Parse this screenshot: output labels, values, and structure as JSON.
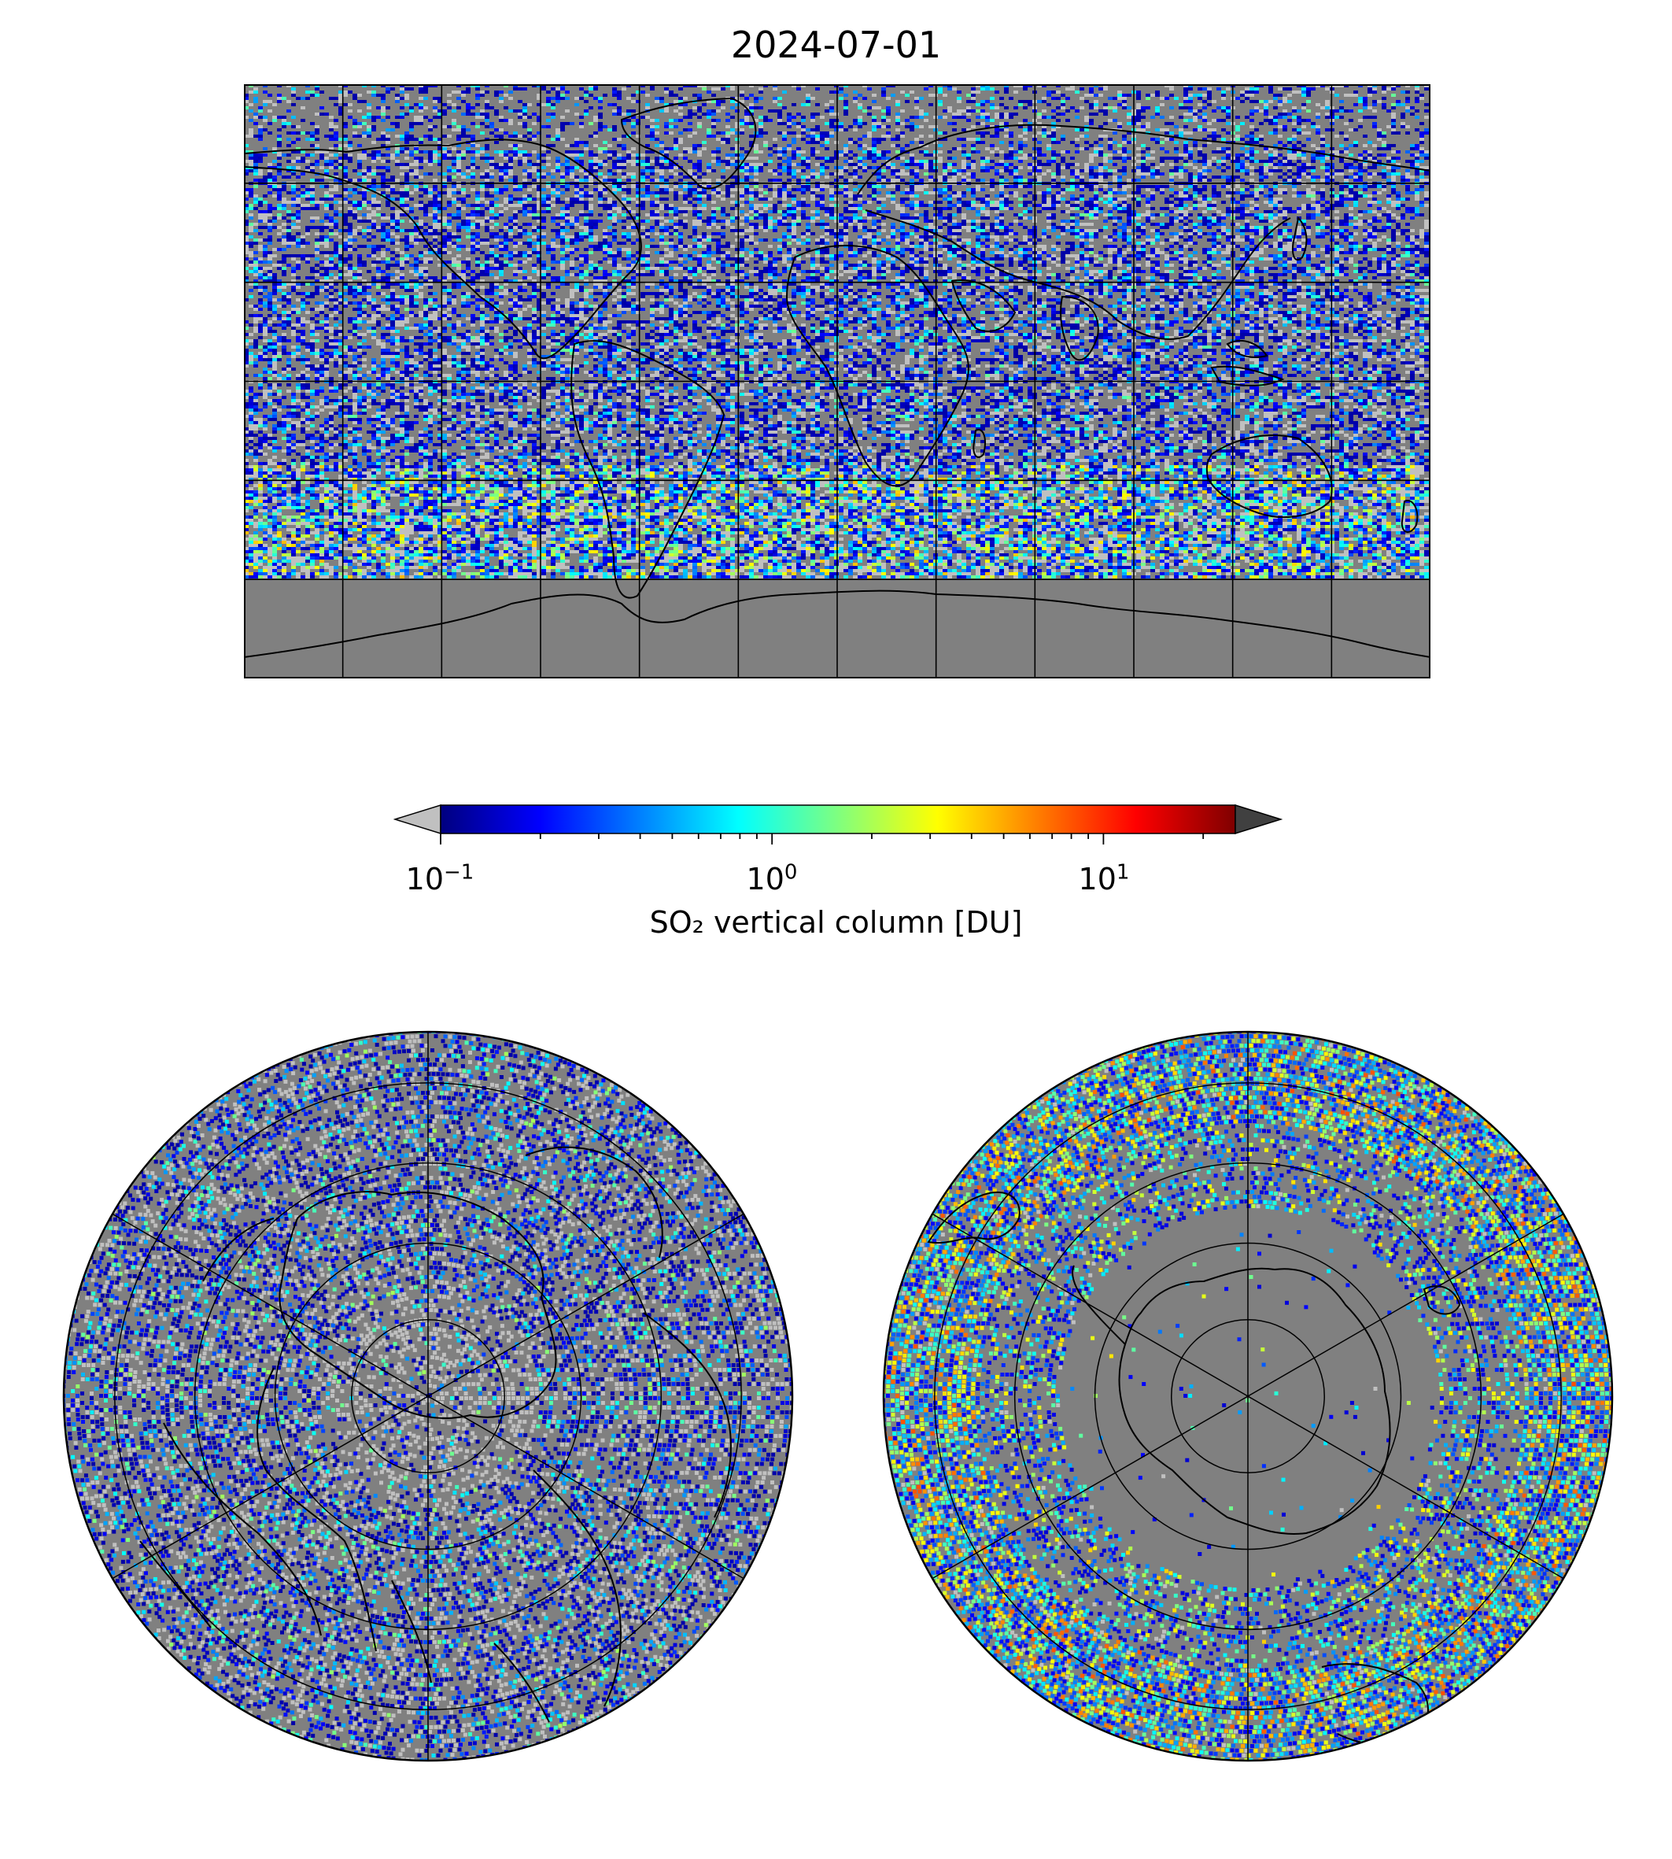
{
  "figure": {
    "title": "2024-07-01"
  },
  "colorbar": {
    "label": "SO₂ vertical column [DU]",
    "scale": "log",
    "range": [
      0.1,
      25
    ],
    "ticks": [
      {
        "base": "10",
        "exp": "−1",
        "value": 0.1
      },
      {
        "base": "10",
        "exp": "0",
        "value": 1
      },
      {
        "base": "10",
        "exp": "1",
        "value": 10
      }
    ],
    "colormap": [
      "#00007f",
      "#0000ff",
      "#007fff",
      "#00ffff",
      "#7fff7f",
      "#ffff00",
      "#ff7f00",
      "#ff0000",
      "#7f0000"
    ],
    "under_color": "#c0c0c0",
    "over_color": "#404040",
    "extend": "both"
  },
  "colors": {
    "no_data": "#808080",
    "below_min": "#c0c0c0",
    "coastline": "#000000",
    "gridline": "#000000"
  },
  "maps": {
    "world": {
      "projection": "plate-carree",
      "lon_range": [
        -180,
        180
      ],
      "lat_range": [
        -90,
        90
      ],
      "grid_spacing_deg": 30
    },
    "north": {
      "projection": "north-polar-stereographic",
      "lat_boundary": 0
    },
    "south": {
      "projection": "south-polar-stereographic",
      "lat_boundary": 0
    }
  }
}
